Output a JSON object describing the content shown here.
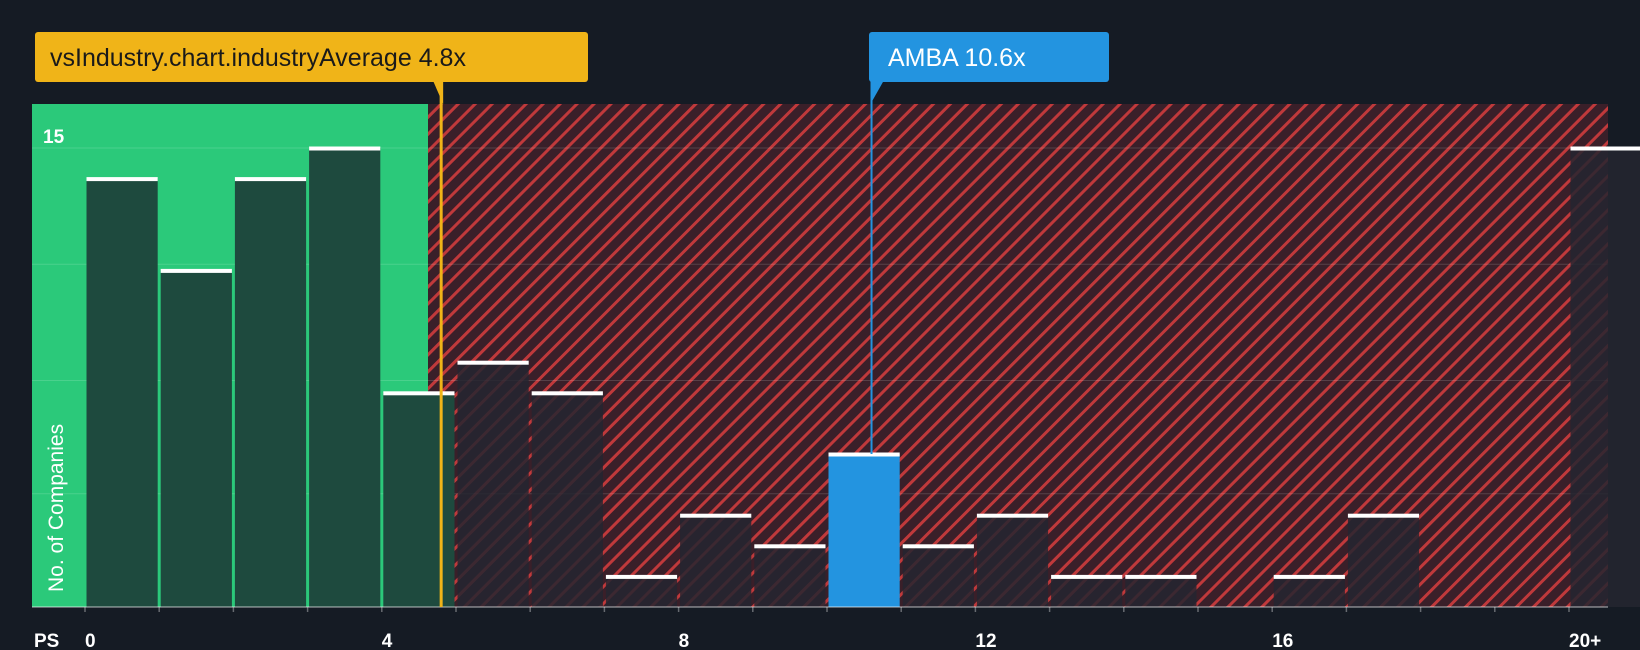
{
  "chart_data": {
    "type": "bar",
    "xlabel": "PS",
    "ylabel": "No. of Companies",
    "x_ticks": [
      "0",
      "4",
      "8",
      "12",
      "16",
      "20+"
    ],
    "y_ticks": [
      "15"
    ],
    "ylim": [
      0,
      15.5
    ],
    "xlim": [
      0,
      20.8
    ],
    "bin_width": 1,
    "bins": [
      {
        "x": 0,
        "value": 14
      },
      {
        "x": 1,
        "value": 11
      },
      {
        "x": 2,
        "value": 14
      },
      {
        "x": 3,
        "value": 15
      },
      {
        "x": 4,
        "value": 7
      },
      {
        "x": 5,
        "value": 8
      },
      {
        "x": 6,
        "value": 7
      },
      {
        "x": 7,
        "value": 1
      },
      {
        "x": 8,
        "value": 3
      },
      {
        "x": 9,
        "value": 2
      },
      {
        "x": 10,
        "value": 5,
        "highlight": true
      },
      {
        "x": 11,
        "value": 2
      },
      {
        "x": 12,
        "value": 3
      },
      {
        "x": 13,
        "value": 1
      },
      {
        "x": 14,
        "value": 1
      },
      {
        "x": 16,
        "value": 1
      },
      {
        "x": 17,
        "value": 3
      },
      {
        "x": 20,
        "value": 15
      }
    ],
    "industry_average": {
      "label": "vsIndustry.chart.industryAverage 4.8x",
      "value": 4.8
    },
    "company": {
      "label": "AMBA 10.6x",
      "value": 10.6
    },
    "grid": true,
    "colors": {
      "background": "#151b24",
      "fair_zone": "#2bc97a",
      "fair_bar": "#1e4a3e",
      "over_zone": "#3a1f29",
      "over_stripe": "#c0393b",
      "over_bar": "#242630",
      "highlight_bar": "#2394e0",
      "industry_accent": "#f0b418",
      "company_accent": "#2394e0",
      "bar_cap": "#ffffff"
    }
  }
}
